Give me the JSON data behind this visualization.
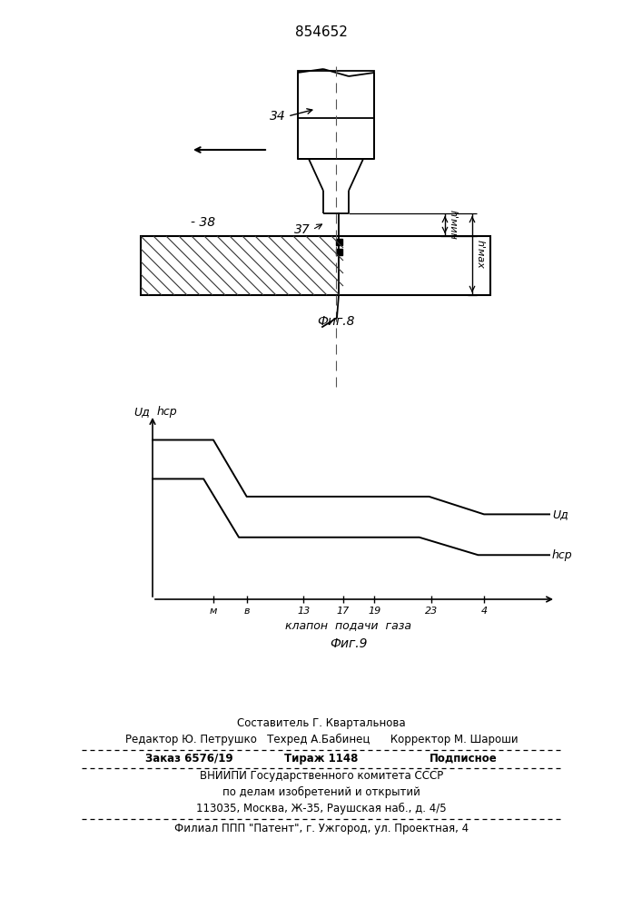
{
  "patent_number": "854652",
  "fig8_label": "Фиг.8",
  "fig9_label": "Фиг.9",
  "fig9_xlabel": "клапон  подачи  газа",
  "fig9_ylabel_ud": "Uд",
  "fig9_ylabel_hcp": "hср",
  "fig9_yaxis_label1": "Uд",
  "fig9_yaxis_label2": "hср",
  "label_34": "34",
  "label_37": "37",
  "label_38": "- 38",
  "label_hmin": "h'мин",
  "label_hmax": "h'мах",
  "tick_labels": [
    "м",
    "в",
    "13",
    "17",
    "19",
    "23",
    "4"
  ],
  "footer_line1": "Составитель Г. Квартальнова",
  "footer_line2": "Редактор Ю. Петрушко   Техред А.Бабинец      Корректор М. Шароши",
  "footer_line3a": "Заказ 6576/19",
  "footer_line3b": "Тираж 1148",
  "footer_line3c": "Подписное",
  "footer_line4": "ВНИИПИ Государственного комитета СССР",
  "footer_line5": "по делам изобретений и открытий",
  "footer_line6": "113035, Москва, Ж-35, Раушская наб., д. 4/5",
  "footer_line7": "Филиал ППП \"Патент\", г. Ужгород, ул. Проектная, 4",
  "bg_color": "#ffffff",
  "line_color": "#000000"
}
